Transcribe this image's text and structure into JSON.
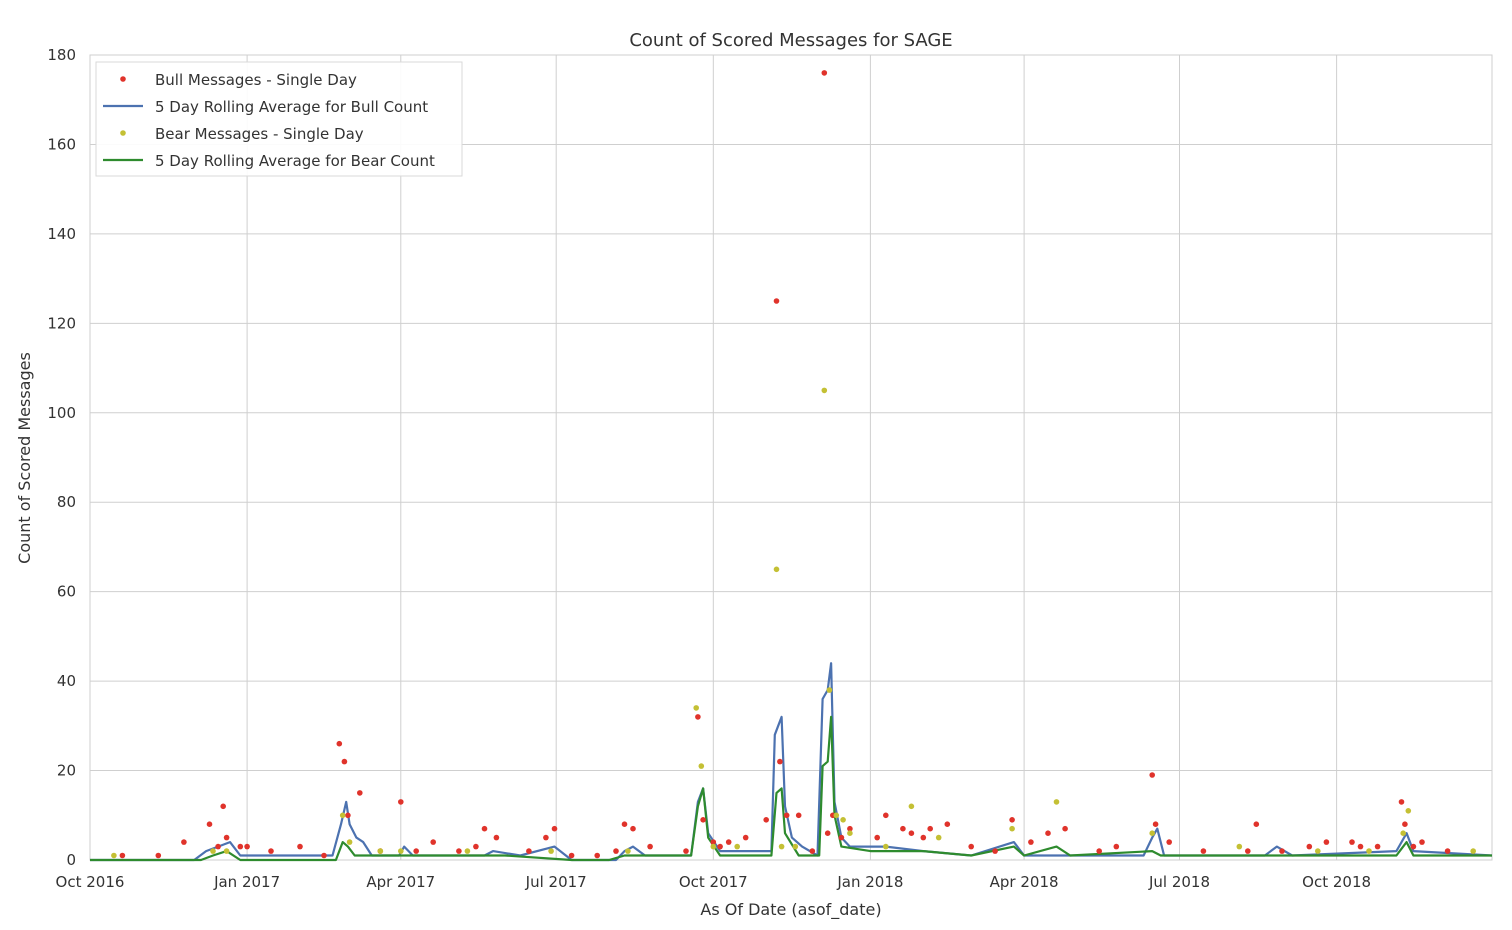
{
  "chart_data": {
    "type": "line",
    "title": "Count of Scored Messages for SAGE",
    "xlabel": "As Of Date (asof_date)",
    "ylabel": "Count of Scored Messages",
    "xlim": [
      "2016-10-01",
      "2018-12-31"
    ],
    "ylim": [
      0,
      180
    ],
    "grid": true,
    "legend_position": "top-left",
    "x_ticks": [
      {
        "date": "2016-10-01",
        "label": "Oct 2016"
      },
      {
        "date": "2017-01-01",
        "label": "Jan 2017"
      },
      {
        "date": "2017-04-01",
        "label": "Apr 2017"
      },
      {
        "date": "2017-07-01",
        "label": "Jul 2017"
      },
      {
        "date": "2017-10-01",
        "label": "Oct 2017"
      },
      {
        "date": "2018-01-01",
        "label": "Jan 2018"
      },
      {
        "date": "2018-04-01",
        "label": "Apr 2018"
      },
      {
        "date": "2018-07-01",
        "label": "Jul 2018"
      },
      {
        "date": "2018-10-01",
        "label": "Oct 2018"
      }
    ],
    "y_ticks": [
      0,
      20,
      40,
      60,
      80,
      100,
      120,
      140,
      160,
      180
    ],
    "series": [
      {
        "name": "Bull Messages - Single Day",
        "kind": "scatter",
        "color": "#e0332b",
        "points": [
          [
            "2016-10-20",
            1
          ],
          [
            "2016-11-10",
            1
          ],
          [
            "2016-11-25",
            4
          ],
          [
            "2016-12-10",
            8
          ],
          [
            "2016-12-15",
            3
          ],
          [
            "2016-12-18",
            12
          ],
          [
            "2016-12-20",
            5
          ],
          [
            "2016-12-28",
            3
          ],
          [
            "2017-01-01",
            3
          ],
          [
            "2017-01-15",
            2
          ],
          [
            "2017-02-01",
            3
          ],
          [
            "2017-02-15",
            1
          ],
          [
            "2017-02-24",
            26
          ],
          [
            "2017-02-27",
            22
          ],
          [
            "2017-03-01",
            10
          ],
          [
            "2017-03-08",
            15
          ],
          [
            "2017-03-20",
            2
          ],
          [
            "2017-04-01",
            13
          ],
          [
            "2017-04-10",
            2
          ],
          [
            "2017-04-20",
            4
          ],
          [
            "2017-05-05",
            2
          ],
          [
            "2017-05-15",
            3
          ],
          [
            "2017-05-20",
            7
          ],
          [
            "2017-05-27",
            5
          ],
          [
            "2017-06-15",
            2
          ],
          [
            "2017-06-25",
            5
          ],
          [
            "2017-06-30",
            7
          ],
          [
            "2017-07-10",
            1
          ],
          [
            "2017-07-25",
            1
          ],
          [
            "2017-08-05",
            2
          ],
          [
            "2017-08-10",
            8
          ],
          [
            "2017-08-15",
            7
          ],
          [
            "2017-08-25",
            3
          ],
          [
            "2017-09-15",
            2
          ],
          [
            "2017-09-22",
            32
          ],
          [
            "2017-09-25",
            9
          ],
          [
            "2017-10-01",
            4
          ],
          [
            "2017-10-05",
            3
          ],
          [
            "2017-10-10",
            4
          ],
          [
            "2017-10-20",
            5
          ],
          [
            "2017-11-01",
            9
          ],
          [
            "2017-11-07",
            125
          ],
          [
            "2017-11-09",
            22
          ],
          [
            "2017-11-13",
            10
          ],
          [
            "2017-11-20",
            10
          ],
          [
            "2017-11-28",
            2
          ],
          [
            "2017-12-05",
            176
          ],
          [
            "2017-12-07",
            6
          ],
          [
            "2017-12-10",
            10
          ],
          [
            "2017-12-15",
            5
          ],
          [
            "2017-12-20",
            7
          ],
          [
            "2018-01-05",
            5
          ],
          [
            "2018-01-10",
            10
          ],
          [
            "2018-01-20",
            7
          ],
          [
            "2018-01-25",
            6
          ],
          [
            "2018-02-01",
            5
          ],
          [
            "2018-02-05",
            7
          ],
          [
            "2018-02-15",
            8
          ],
          [
            "2018-03-01",
            3
          ],
          [
            "2018-03-15",
            2
          ],
          [
            "2018-03-25",
            9
          ],
          [
            "2018-04-05",
            4
          ],
          [
            "2018-04-15",
            6
          ],
          [
            "2018-04-25",
            7
          ],
          [
            "2018-05-15",
            2
          ],
          [
            "2018-05-25",
            3
          ],
          [
            "2018-06-15",
            19
          ],
          [
            "2018-06-17",
            8
          ],
          [
            "2018-06-25",
            4
          ],
          [
            "2018-07-15",
            2
          ],
          [
            "2018-08-10",
            2
          ],
          [
            "2018-08-15",
            8
          ],
          [
            "2018-08-30",
            2
          ],
          [
            "2018-09-15",
            3
          ],
          [
            "2018-09-25",
            4
          ],
          [
            "2018-10-10",
            4
          ],
          [
            "2018-10-15",
            3
          ],
          [
            "2018-10-25",
            3
          ],
          [
            "2018-11-08",
            13
          ],
          [
            "2018-11-10",
            8
          ],
          [
            "2018-11-15",
            3
          ],
          [
            "2018-11-20",
            4
          ],
          [
            "2018-12-05",
            2
          ]
        ]
      },
      {
        "name": "5 Day Rolling Average for Bull Count",
        "kind": "line",
        "color": "#4c72b0",
        "points": [
          [
            "2016-10-01",
            0
          ],
          [
            "2016-12-01",
            0
          ],
          [
            "2016-12-08",
            2
          ],
          [
            "2016-12-15",
            3
          ],
          [
            "2016-12-22",
            4
          ],
          [
            "2016-12-28",
            1
          ],
          [
            "2017-01-20",
            1
          ],
          [
            "2017-02-20",
            1
          ],
          [
            "2017-02-25",
            8
          ],
          [
            "2017-02-28",
            13
          ],
          [
            "2017-03-02",
            8
          ],
          [
            "2017-03-06",
            5
          ],
          [
            "2017-03-10",
            4
          ],
          [
            "2017-03-15",
            1
          ],
          [
            "2017-03-31",
            1
          ],
          [
            "2017-04-03",
            3
          ],
          [
            "2017-04-08",
            1
          ],
          [
            "2017-05-20",
            1
          ],
          [
            "2017-05-25",
            2
          ],
          [
            "2017-06-10",
            1
          ],
          [
            "2017-06-30",
            3
          ],
          [
            "2017-07-10",
            0
          ],
          [
            "2017-08-05",
            0
          ],
          [
            "2017-08-10",
            2
          ],
          [
            "2017-08-15",
            3
          ],
          [
            "2017-08-22",
            1
          ],
          [
            "2017-09-18",
            1
          ],
          [
            "2017-09-22",
            13
          ],
          [
            "2017-09-25",
            16
          ],
          [
            "2017-09-28",
            6
          ],
          [
            "2017-10-05",
            2
          ],
          [
            "2017-11-04",
            2
          ],
          [
            "2017-11-06",
            28
          ],
          [
            "2017-11-08",
            30
          ],
          [
            "2017-11-10",
            32
          ],
          [
            "2017-11-12",
            12
          ],
          [
            "2017-11-16",
            5
          ],
          [
            "2017-11-22",
            3
          ],
          [
            "2017-12-01",
            1
          ],
          [
            "2017-12-04",
            36
          ],
          [
            "2017-12-07",
            38
          ],
          [
            "2017-12-09",
            44
          ],
          [
            "2017-12-11",
            13
          ],
          [
            "2017-12-15",
            5
          ],
          [
            "2017-12-20",
            3
          ],
          [
            "2018-01-10",
            3
          ],
          [
            "2018-02-01",
            2
          ],
          [
            "2018-03-01",
            1
          ],
          [
            "2018-03-26",
            4
          ],
          [
            "2018-04-01",
            1
          ],
          [
            "2018-06-10",
            1
          ],
          [
            "2018-06-15",
            5
          ],
          [
            "2018-06-18",
            7
          ],
          [
            "2018-06-22",
            1
          ],
          [
            "2018-08-20",
            1
          ],
          [
            "2018-08-27",
            3
          ],
          [
            "2018-09-05",
            1
          ],
          [
            "2018-11-05",
            2
          ],
          [
            "2018-11-11",
            6
          ],
          [
            "2018-11-15",
            2
          ],
          [
            "2018-12-31",
            1
          ]
        ]
      },
      {
        "name": "Bear Messages - Single Day",
        "kind": "scatter",
        "color": "#c4c034",
        "points": [
          [
            "2016-10-15",
            1
          ],
          [
            "2016-12-12",
            2
          ],
          [
            "2016-12-20",
            2
          ],
          [
            "2017-02-26",
            10
          ],
          [
            "2017-03-02",
            4
          ],
          [
            "2017-03-20",
            2
          ],
          [
            "2017-04-01",
            2
          ],
          [
            "2017-05-10",
            2
          ],
          [
            "2017-06-28",
            2
          ],
          [
            "2017-08-12",
            2
          ],
          [
            "2017-09-21",
            34
          ],
          [
            "2017-09-24",
            21
          ],
          [
            "2017-10-01",
            3
          ],
          [
            "2017-10-15",
            3
          ],
          [
            "2017-11-07",
            65
          ],
          [
            "2017-11-10",
            3
          ],
          [
            "2017-11-18",
            3
          ],
          [
            "2017-12-05",
            105
          ],
          [
            "2017-12-08",
            38
          ],
          [
            "2017-12-12",
            10
          ],
          [
            "2017-12-16",
            9
          ],
          [
            "2017-12-20",
            6
          ],
          [
            "2018-01-10",
            3
          ],
          [
            "2018-01-25",
            12
          ],
          [
            "2018-02-10",
            5
          ],
          [
            "2018-03-25",
            7
          ],
          [
            "2018-04-20",
            13
          ],
          [
            "2018-06-15",
            6
          ],
          [
            "2018-08-05",
            3
          ],
          [
            "2018-09-20",
            2
          ],
          [
            "2018-10-20",
            2
          ],
          [
            "2018-11-09",
            6
          ],
          [
            "2018-11-12",
            11
          ],
          [
            "2018-12-20",
            2
          ]
        ]
      },
      {
        "name": "5 Day Rolling Average for Bear Count",
        "kind": "line",
        "color": "#2e8b2e",
        "points": [
          [
            "2016-10-01",
            0
          ],
          [
            "2016-12-05",
            0
          ],
          [
            "2016-12-12",
            1
          ],
          [
            "2016-12-20",
            2
          ],
          [
            "2016-12-28",
            0
          ],
          [
            "2017-02-22",
            0
          ],
          [
            "2017-02-26",
            4
          ],
          [
            "2017-03-01",
            3
          ],
          [
            "2017-03-05",
            1
          ],
          [
            "2017-03-20",
            1
          ],
          [
            "2017-04-01",
            1
          ],
          [
            "2017-06-01",
            1
          ],
          [
            "2017-07-10",
            0
          ],
          [
            "2017-08-01",
            0
          ],
          [
            "2017-08-10",
            1
          ],
          [
            "2017-09-18",
            1
          ],
          [
            "2017-09-22",
            12
          ],
          [
            "2017-09-25",
            16
          ],
          [
            "2017-09-28",
            5
          ],
          [
            "2017-10-05",
            1
          ],
          [
            "2017-11-04",
            1
          ],
          [
            "2017-11-07",
            15
          ],
          [
            "2017-11-10",
            16
          ],
          [
            "2017-11-12",
            6
          ],
          [
            "2017-11-20",
            1
          ],
          [
            "2017-12-02",
            1
          ],
          [
            "2017-12-04",
            21
          ],
          [
            "2017-12-07",
            22
          ],
          [
            "2017-12-09",
            32
          ],
          [
            "2017-12-11",
            10
          ],
          [
            "2017-12-15",
            3
          ],
          [
            "2018-01-01",
            2
          ],
          [
            "2018-02-01",
            2
          ],
          [
            "2018-03-01",
            1
          ],
          [
            "2018-03-26",
            3
          ],
          [
            "2018-04-01",
            1
          ],
          [
            "2018-04-20",
            3
          ],
          [
            "2018-04-28",
            1
          ],
          [
            "2018-06-15",
            2
          ],
          [
            "2018-06-20",
            1
          ],
          [
            "2018-11-05",
            1
          ],
          [
            "2018-11-11",
            4
          ],
          [
            "2018-11-15",
            1
          ],
          [
            "2018-12-31",
            1
          ]
        ]
      }
    ]
  }
}
